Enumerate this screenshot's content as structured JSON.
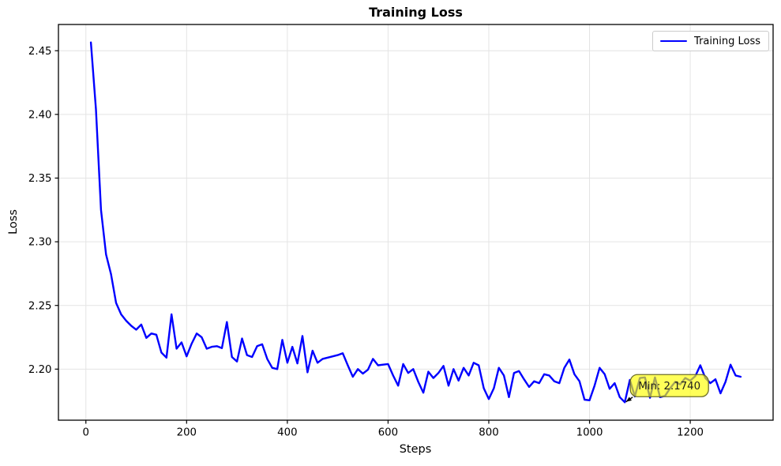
{
  "chart_data": {
    "type": "line",
    "title": "Training Loss",
    "xlabel": "Steps",
    "ylabel": "Loss",
    "grid": true,
    "legend_position": "upper right",
    "line_color": "#0000ff",
    "xlim": [
      -54.5,
      1364.5
    ],
    "ylim": [
      2.1599,
      2.4706
    ],
    "xticks": [
      0,
      200,
      400,
      600,
      800,
      1000,
      1200
    ],
    "xtick_labels": [
      "0",
      "200",
      "400",
      "600",
      "800",
      "1000",
      "1200"
    ],
    "yticks": [
      2.2,
      2.25,
      2.3,
      2.35,
      2.4,
      2.45
    ],
    "ytick_labels": [
      "2.20",
      "2.25",
      "2.30",
      "2.35",
      "2.40",
      "2.45"
    ],
    "annotation": {
      "text": "Min: 2.1740",
      "target_x": 1070,
      "target_y": 2.174,
      "box_color": "#ffff00",
      "box_alpha": 0.65
    },
    "series": [
      {
        "name": "Training Loss",
        "color": "#0000ff",
        "x": [
          10,
          20,
          30,
          40,
          50,
          60,
          70,
          80,
          90,
          100,
          110,
          120,
          130,
          140,
          150,
          160,
          170,
          180,
          190,
          200,
          210,
          220,
          230,
          240,
          250,
          260,
          270,
          280,
          290,
          300,
          310,
          320,
          330,
          340,
          350,
          360,
          370,
          380,
          390,
          400,
          410,
          420,
          430,
          440,
          450,
          460,
          470,
          480,
          490,
          500,
          510,
          520,
          530,
          540,
          550,
          560,
          570,
          580,
          590,
          600,
          610,
          620,
          630,
          640,
          650,
          660,
          670,
          680,
          690,
          700,
          710,
          720,
          730,
          740,
          750,
          760,
          770,
          780,
          790,
          800,
          810,
          820,
          830,
          840,
          850,
          860,
          870,
          880,
          890,
          900,
          910,
          920,
          930,
          940,
          950,
          960,
          970,
          980,
          990,
          1000,
          1010,
          1020,
          1030,
          1040,
          1050,
          1060,
          1070,
          1080,
          1090,
          1100,
          1110,
          1120,
          1130,
          1140,
          1150,
          1160,
          1170,
          1180,
          1190,
          1200,
          1210,
          1220,
          1230,
          1240,
          1250,
          1260,
          1270,
          1280,
          1290,
          1300
        ],
        "y": [
          2.4565,
          2.404,
          2.325,
          2.29,
          2.2745,
          2.252,
          2.243,
          2.238,
          2.234,
          2.231,
          2.235,
          2.2245,
          2.228,
          2.227,
          2.213,
          2.209,
          2.243,
          2.216,
          2.221,
          2.21,
          2.22,
          2.228,
          2.225,
          2.216,
          2.2175,
          2.218,
          2.2165,
          2.237,
          2.2095,
          2.206,
          2.224,
          2.211,
          2.2095,
          2.218,
          2.2195,
          2.208,
          2.201,
          2.2,
          2.223,
          2.205,
          2.2175,
          2.2045,
          2.226,
          2.1975,
          2.2145,
          2.205,
          2.208,
          2.209,
          2.21,
          2.211,
          2.2125,
          2.203,
          2.194,
          2.2,
          2.1965,
          2.1995,
          2.208,
          2.203,
          2.2035,
          2.204,
          2.195,
          2.187,
          2.204,
          2.197,
          2.2,
          2.19,
          2.1815,
          2.198,
          2.193,
          2.197,
          2.2025,
          2.187,
          2.2,
          2.191,
          2.201,
          2.195,
          2.205,
          2.203,
          2.185,
          2.1765,
          2.185,
          2.201,
          2.195,
          2.178,
          2.197,
          2.1985,
          2.192,
          2.186,
          2.1905,
          2.189,
          2.196,
          2.195,
          2.1905,
          2.189,
          2.201,
          2.2075,
          2.196,
          2.1905,
          2.176,
          2.1755,
          2.187,
          2.201,
          2.196,
          2.1845,
          2.189,
          2.178,
          2.174,
          2.1915,
          2.1785,
          2.193,
          2.1935,
          2.1775,
          2.1935,
          2.178,
          2.179,
          2.185,
          2.19,
          2.188,
          2.193,
          2.191,
          2.1945,
          2.203,
          2.193,
          2.189,
          2.192,
          2.181,
          2.19,
          2.2035,
          2.195,
          2.194
        ]
      }
    ]
  }
}
